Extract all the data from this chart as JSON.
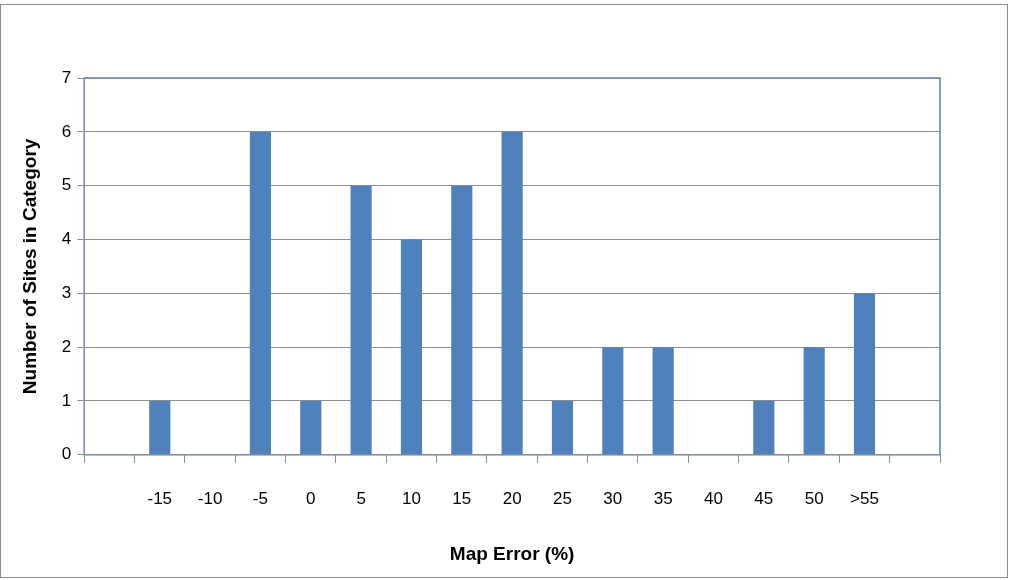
{
  "chart_data": {
    "type": "bar",
    "xlabel": "Map Error (%)",
    "ylabel": "Number of Sites in Category",
    "categories": [
      null,
      "-15",
      "-10",
      "-5",
      "0",
      "5",
      "10",
      "15",
      "20",
      "25",
      "30",
      "35",
      "40",
      "45",
      "50",
      ">55",
      null
    ],
    "values": [
      0,
      1,
      0,
      6,
      1,
      5,
      4,
      5,
      6,
      1,
      2,
      2,
      0,
      1,
      2,
      3,
      0
    ],
    "color": "#4f81bd",
    "ylim": [
      0,
      7
    ],
    "yticks": [
      0,
      1,
      2,
      3,
      4,
      5,
      6,
      7
    ],
    "grid": "y",
    "legend": false
  }
}
